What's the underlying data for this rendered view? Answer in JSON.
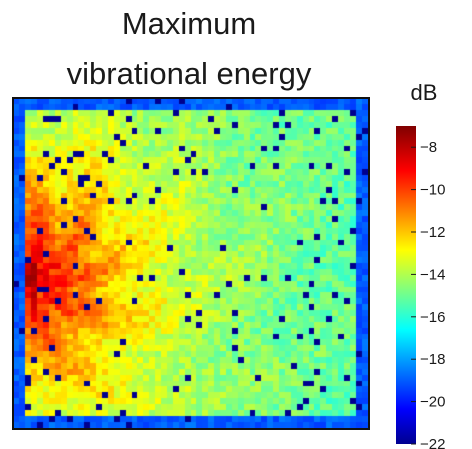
{
  "chart_data": {
    "type": "heatmap",
    "title_line1": "Maximum",
    "title_line2": "vibrational energy",
    "colorbar": {
      "unit": "dB",
      "range": [
        -22,
        -7
      ],
      "ticks": [
        {
          "value": -8,
          "label": "−8"
        },
        {
          "value": -10,
          "label": "−10"
        },
        {
          "value": -12,
          "label": "−12"
        },
        {
          "value": -14,
          "label": "−14"
        },
        {
          "value": -16,
          "label": "−16"
        },
        {
          "value": -18,
          "label": "−18"
        },
        {
          "value": -20,
          "label": "−20"
        },
        {
          "value": -22,
          "label": "−22"
        }
      ],
      "colormap": "jet"
    },
    "grid": {
      "columns": 60,
      "rows": 56,
      "hotspot": {
        "x": 0.05,
        "y": 0.55,
        "peak_db": -8
      },
      "background_db": -15.5,
      "edge_db": -19,
      "sparse_dots_db": -22
    }
  }
}
